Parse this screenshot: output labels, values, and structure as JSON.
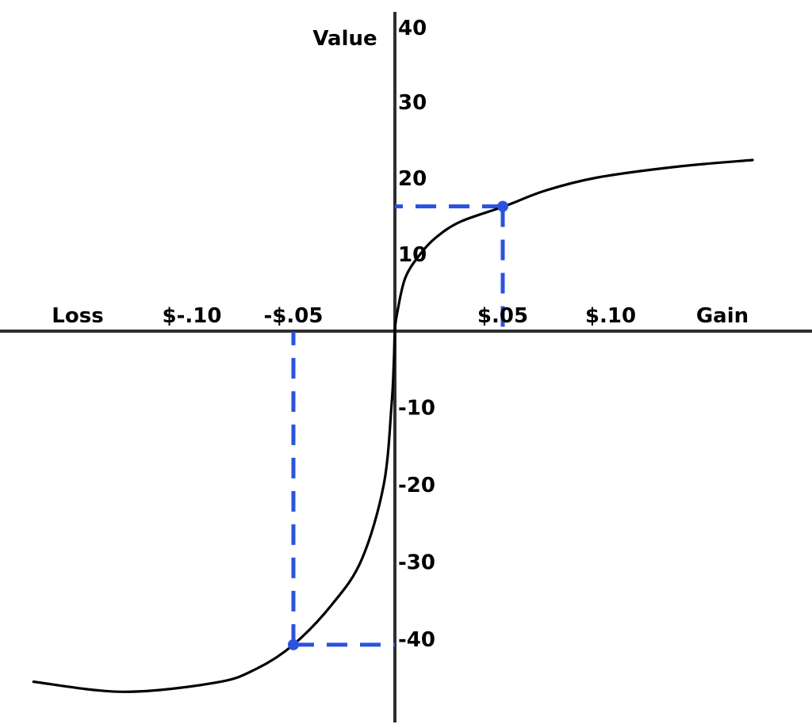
{
  "figure": {
    "y_axis_title": "Value",
    "x_axis_left_label": "Loss",
    "x_axis_right_label": "Gain"
  },
  "chart_data": {
    "type": "line",
    "title": "",
    "ylabel": "Value",
    "xlabel_left": "Loss",
    "xlabel_right": "Gain",
    "xlim": [
      -0.19,
      0.2
    ],
    "ylim": [
      -48,
      42
    ],
    "grid": false,
    "legend": false,
    "x_ticks": [
      {
        "label": "$-.10",
        "value": -0.1
      },
      {
        "label": "-$.05",
        "value": -0.05
      },
      {
        "label": "$.05",
        "value": 0.05
      },
      {
        "label": "$.10",
        "value": 0.1
      }
    ],
    "y_ticks": [
      {
        "label": "40",
        "value": 40
      },
      {
        "label": "30",
        "value": 30
      },
      {
        "label": "20",
        "value": 20
      },
      {
        "label": "10",
        "value": 10
      },
      {
        "label": "-10",
        "value": -10
      },
      {
        "label": "-20",
        "value": -20
      },
      {
        "label": "-30",
        "value": -30
      },
      {
        "label": "-40",
        "value": -40
      }
    ],
    "series": [
      {
        "name": "prospect-theory-value-function",
        "color": "#000000",
        "points": [
          [
            -0.178,
            -45.5
          ],
          [
            -0.134,
            -46.8
          ],
          [
            -0.088,
            -45.6
          ],
          [
            -0.068,
            -43.8
          ],
          [
            -0.05,
            -40.7
          ],
          [
            -0.031,
            -35.5
          ],
          [
            -0.0164,
            -29.7
          ],
          [
            -0.0055,
            -20.0
          ],
          [
            -0.0016,
            -9.5
          ],
          [
            -0.0005,
            -4.0
          ],
          [
            0,
            0
          ],
          [
            0.0012,
            2.5
          ],
          [
            0.0048,
            6.9
          ],
          [
            0.0114,
            9.9
          ],
          [
            0.019,
            12.2
          ],
          [
            0.0305,
            14.3
          ],
          [
            0.0507,
            16.3
          ],
          [
            0.07,
            18.4
          ],
          [
            0.094,
            20.1
          ],
          [
            0.13,
            21.5
          ],
          [
            0.1658,
            22.4
          ]
        ]
      }
    ],
    "highlighted_points": [
      {
        "name": "gain-example",
        "x": 0.05,
        "value": 16.3
      },
      {
        "name": "loss-example",
        "x": -0.05,
        "value": -40.7
      }
    ],
    "colors": {
      "curve": "#000000",
      "axis": "#2e2e2e",
      "guide_blue": "#2b53dd",
      "text": "#000000"
    }
  }
}
